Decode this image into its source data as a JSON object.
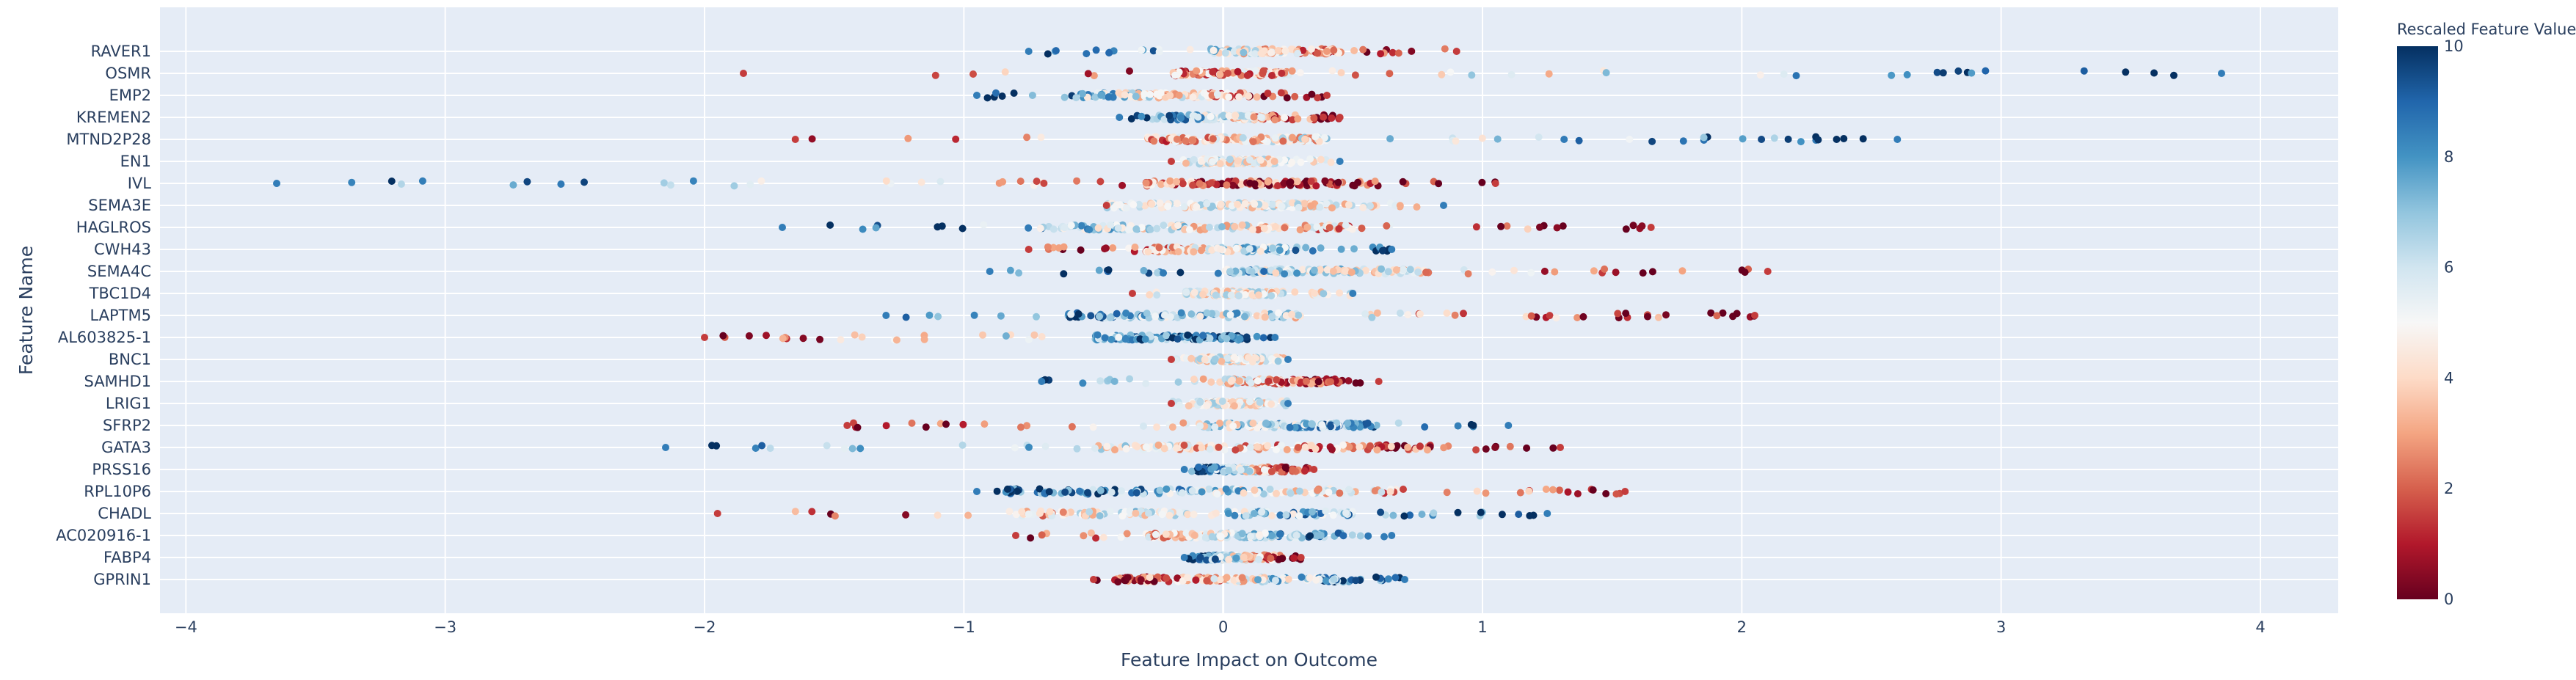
{
  "chart_data": {
    "type": "scatter",
    "xlabel": "Feature Impact on Outcome",
    "ylabel": "Feature Name",
    "xlim": [
      -4.1,
      4.3
    ],
    "x_ticks": [
      "−4",
      "−3",
      "−2",
      "−1",
      "0",
      "1",
      "2",
      "3",
      "4"
    ],
    "x_tick_values": [
      -4,
      -3,
      -2,
      -1,
      0,
      1,
      2,
      3,
      4
    ],
    "grid": true,
    "plot_background": "#e5ecf6",
    "colorbar": {
      "title": "Rescaled Feature Value",
      "min": 0,
      "max": 10,
      "ticks": [
        "0",
        "2",
        "4",
        "6",
        "8",
        "10"
      ],
      "tick_values": [
        0,
        2,
        4,
        6,
        8,
        10
      ],
      "colorscale": [
        "#67001f",
        "#b2182b",
        "#d6604d",
        "#f4a582",
        "#fddbc7",
        "#f7f7f7",
        "#d1e5f0",
        "#92c5de",
        "#4393c3",
        "#2166ac",
        "#053061"
      ]
    },
    "features": [
      {
        "name": "RAVER1",
        "min": -0.75,
        "max": 0.9,
        "core": [
          -0.05,
          0.45
        ],
        "trend": -1
      },
      {
        "name": "OSMR",
        "min": -1.85,
        "max": 3.85,
        "core": [
          -0.2,
          0.25
        ],
        "trend": 1
      },
      {
        "name": "EMP2",
        "min": -0.95,
        "max": 0.4,
        "core": [
          -0.55,
          0.1
        ],
        "trend": -1
      },
      {
        "name": "KREMEN2",
        "min": -0.4,
        "max": 0.45,
        "core": [
          -0.2,
          0.2
        ],
        "trend": -1
      },
      {
        "name": "MTND2P28",
        "min": -1.65,
        "max": 2.6,
        "core": [
          -0.3,
          0.4
        ],
        "trend": 1
      },
      {
        "name": "EN1",
        "min": -0.2,
        "max": 0.45,
        "core": [
          -0.1,
          0.2
        ],
        "trend": 0
      },
      {
        "name": "IVL",
        "min": -3.65,
        "max": 1.05,
        "core": [
          -0.3,
          0.6
        ],
        "trend": -1
      },
      {
        "name": "SEMA3E",
        "min": -0.45,
        "max": 0.85,
        "core": [
          -0.45,
          0.4
        ],
        "trend": 0
      },
      {
        "name": "HAGLROS",
        "min": -1.7,
        "max": 1.65,
        "core": [
          -0.7,
          0.5
        ],
        "trend": -1
      },
      {
        "name": "CWH43",
        "min": -0.75,
        "max": 0.65,
        "core": [
          -0.3,
          0.25
        ],
        "trend": 1
      },
      {
        "name": "SEMA4C",
        "min": -0.9,
        "max": 2.1,
        "core": [
          0.0,
          0.8
        ],
        "trend": -1
      },
      {
        "name": "TBC1D4",
        "min": -0.35,
        "max": 0.5,
        "core": [
          -0.15,
          0.2
        ],
        "trend": 0
      },
      {
        "name": "LAPTM5",
        "min": -1.3,
        "max": 2.05,
        "core": [
          -0.6,
          0.3
        ],
        "trend": -1
      },
      {
        "name": "AL603825-1",
        "min": -2.0,
        "max": 0.2,
        "core": [
          -0.5,
          0.1
        ],
        "trend": 1
      },
      {
        "name": "BNC1",
        "min": -0.2,
        "max": 0.25,
        "core": [
          -0.1,
          0.15
        ],
        "trend": 0
      },
      {
        "name": "SAMHD1",
        "min": -0.7,
        "max": 0.6,
        "core": [
          0.0,
          0.45
        ],
        "trend": -1
      },
      {
        "name": "LRIG1",
        "min": -0.2,
        "max": 0.25,
        "core": [
          -0.1,
          0.15
        ],
        "trend": 0
      },
      {
        "name": "SFRP2",
        "min": -1.45,
        "max": 1.1,
        "core": [
          -0.1,
          0.6
        ],
        "trend": 1
      },
      {
        "name": "GATA3",
        "min": -2.15,
        "max": 1.3,
        "core": [
          -0.5,
          0.8
        ],
        "trend": -1
      },
      {
        "name": "PRSS16",
        "min": -0.15,
        "max": 0.35,
        "core": [
          -0.1,
          0.25
        ],
        "trend": -1
      },
      {
        "name": "RPL10P6",
        "min": -0.95,
        "max": 1.55,
        "core": [
          -0.85,
          0.7
        ],
        "trend": -1
      },
      {
        "name": "CHADL",
        "min": -1.95,
        "max": 1.25,
        "core": [
          -0.8,
          0.5
        ],
        "trend": 1
      },
      {
        "name": "AC020916-1",
        "min": -0.8,
        "max": 0.65,
        "core": [
          -0.3,
          0.4
        ],
        "trend": 1
      },
      {
        "name": "FABP4",
        "min": -0.15,
        "max": 0.3,
        "core": [
          -0.1,
          0.2
        ],
        "trend": -1
      },
      {
        "name": "GPRIN1",
        "min": -0.5,
        "max": 0.7,
        "core": [
          -0.4,
          0.45
        ],
        "trend": 1
      }
    ]
  }
}
